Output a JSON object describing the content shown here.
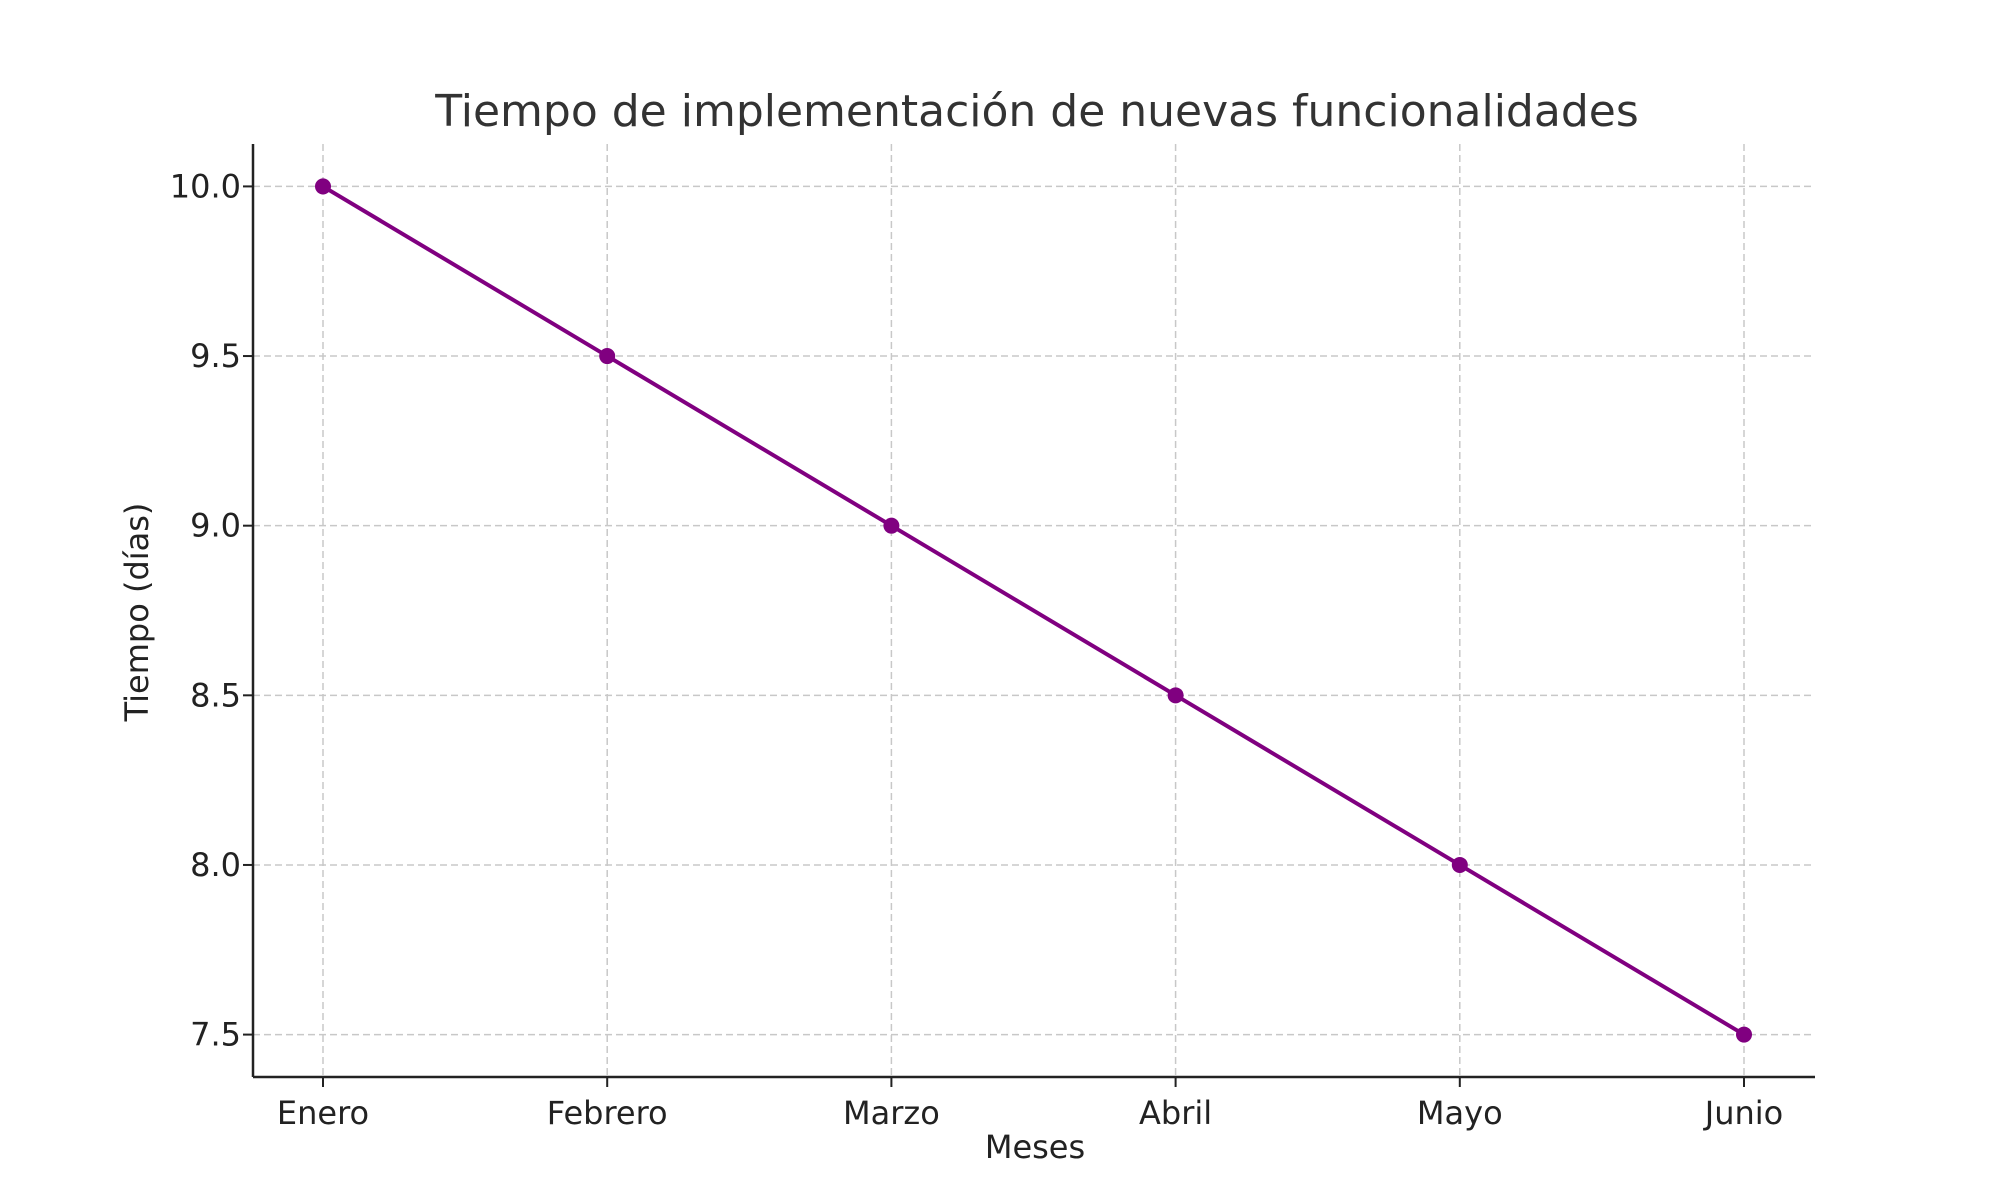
{
  "chart_data": {
    "type": "line",
    "title": "Tiempo de implementación de nuevas funcionalidades",
    "xlabel": "Meses",
    "ylabel": "Tiempo (días)",
    "categories": [
      "Enero",
      "Febrero",
      "Marzo",
      "Abril",
      "Mayo",
      "Junio"
    ],
    "series": [
      {
        "values": [
          10.0,
          9.5,
          9.0,
          8.5,
          8.0,
          7.5
        ],
        "color": "#800080",
        "marker": "circle"
      }
    ],
    "ylim": [
      7.375,
      10.125
    ],
    "yticks": [
      7.5,
      8.0,
      8.5,
      9.0,
      9.5,
      10.0
    ],
    "ytick_labels": [
      "7.5",
      "8.0",
      "8.5",
      "9.0",
      "9.5",
      "10.0"
    ],
    "grid": true,
    "grid_color": "#c8c8c8",
    "axis_color": "#222222"
  }
}
